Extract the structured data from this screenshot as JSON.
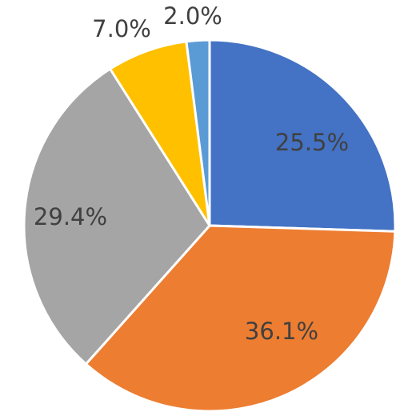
{
  "chart_data": {
    "type": "pie",
    "title": "",
    "legend": "none",
    "start_angle_deg": 0,
    "direction": "clockwise",
    "slices": [
      {
        "value": 25.5,
        "label": "25.5%",
        "color": "#4472C4"
      },
      {
        "value": 36.1,
        "label": "36.1%",
        "color": "#ED7D31"
      },
      {
        "value": 29.4,
        "label": "29.4%",
        "color": "#A5A5A5"
      },
      {
        "value": 7.0,
        "label": "7.0%",
        "color": "#FFC000"
      },
      {
        "value": 2.0,
        "label": "2.0%",
        "color": "#5B9BD5"
      }
    ]
  }
}
